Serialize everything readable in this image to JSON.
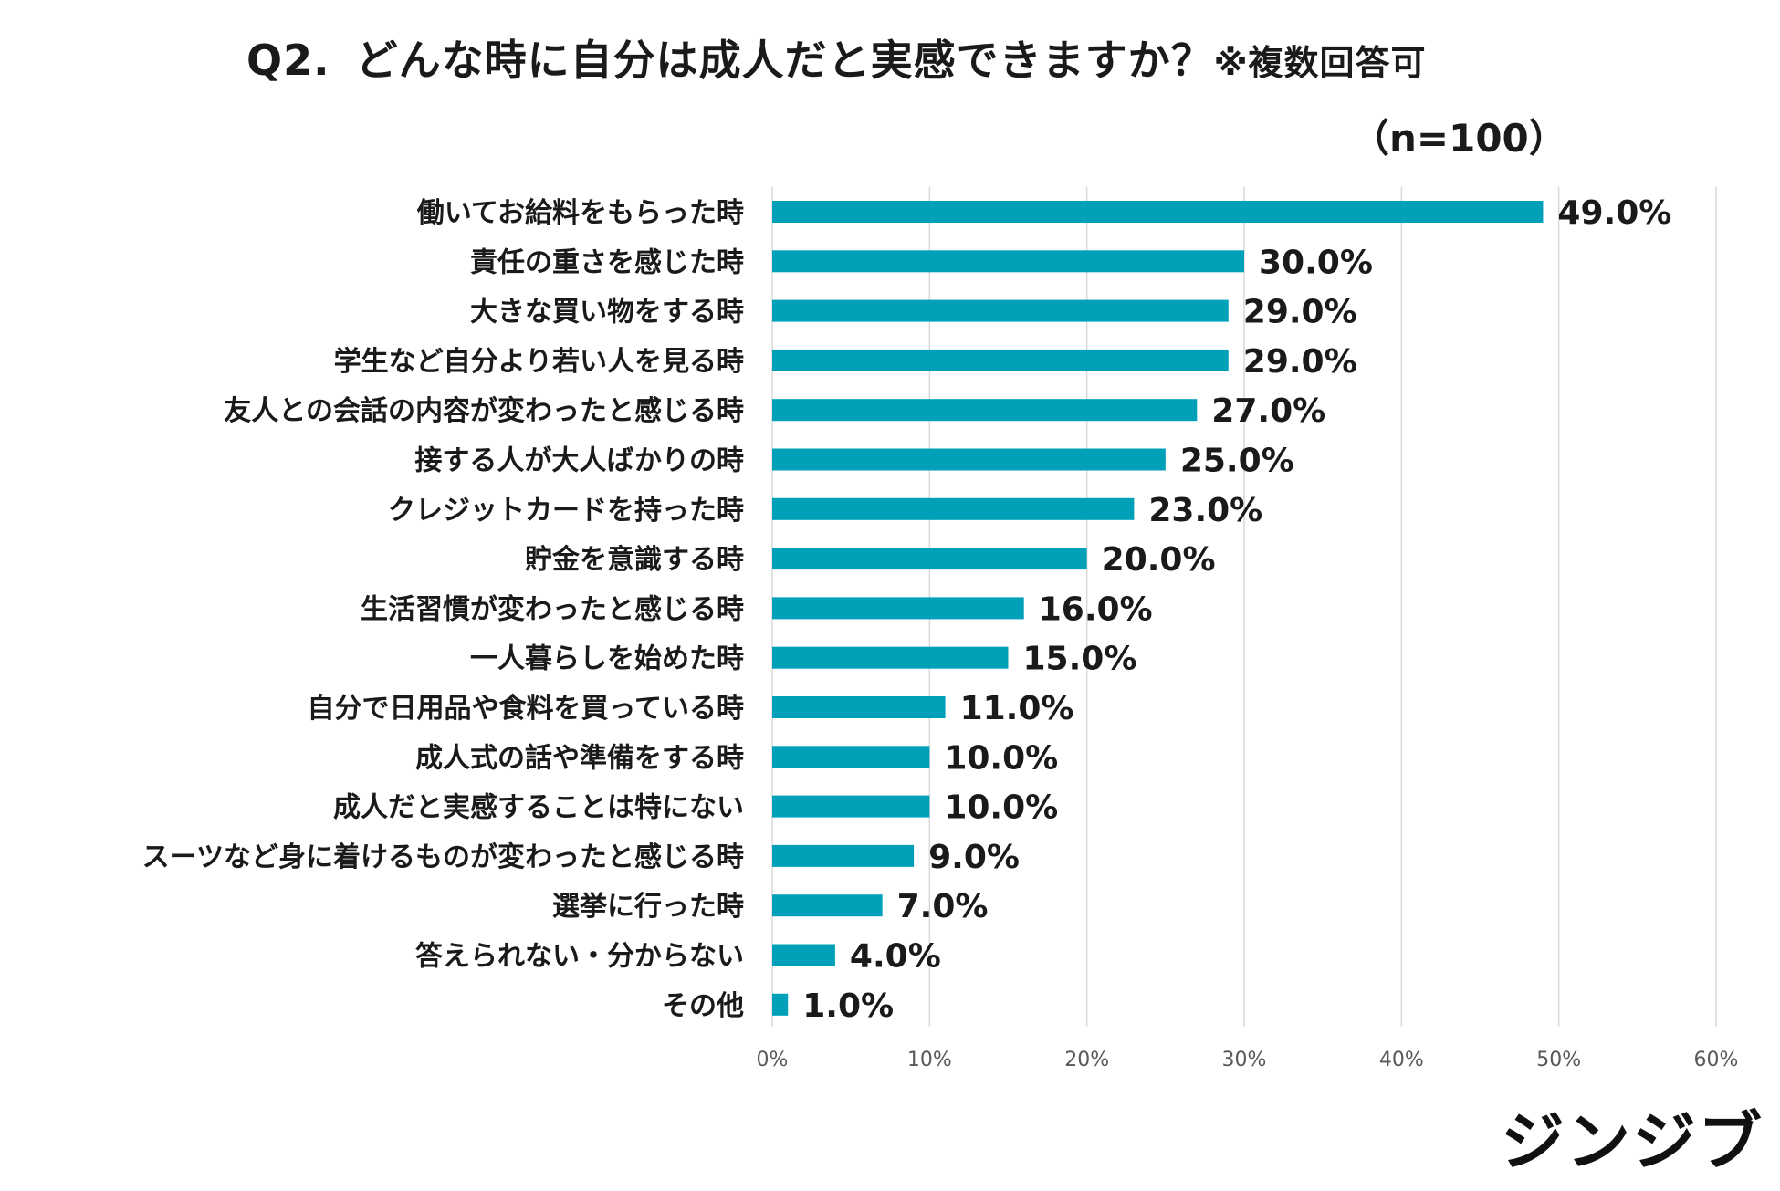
{
  "chart_data": {
    "type": "bar",
    "orientation": "horizontal",
    "title": "Q2.",
    "question": "どんな時に自分は成人だと実感できますか？",
    "note": "※複数回答可",
    "sample_size": "（n=100）",
    "categories": [
      "働いてお給料をもらった時",
      "責任の重さを感じた時",
      "大きな買い物をする時",
      "学生など自分より若い人を見る時",
      "友人との会話の内容が変わったと感じる時",
      "接する人が大人ばかりの時",
      "クレジットカードを持った時",
      "貯金を意識する時",
      "生活習慣が変わったと感じる時",
      "一人暮らしを始めた時",
      "自分で日用品や食料を買っている時",
      "成人式の話や準備をする時",
      "成人だと実感することは特にない",
      "スーツなど身に着けるものが変わったと感じる時",
      "選挙に行った時",
      "答えられない・分からない",
      "その他"
    ],
    "values": [
      49.0,
      30.0,
      29.0,
      29.0,
      27.0,
      25.0,
      23.0,
      20.0,
      16.0,
      15.0,
      11.0,
      10.0,
      10.0,
      9.0,
      7.0,
      4.0,
      1.0
    ],
    "value_labels": [
      "49.0%",
      "30.0%",
      "29.0%",
      "29.0%",
      "27.0%",
      "25.0%",
      "23.0%",
      "20.0%",
      "16.0%",
      "15.0%",
      "11.0%",
      "10.0%",
      "10.0%",
      "9.0%",
      "7.0%",
      "4.0%",
      "1.0%"
    ],
    "x_ticks": [
      0,
      10,
      20,
      30,
      40,
      50,
      60
    ],
    "x_tick_labels": [
      "0%",
      "10%",
      "20%",
      "30%",
      "40%",
      "50%",
      "60%"
    ],
    "xlim": [
      0,
      60
    ],
    "grid": true,
    "bar_color": "#00a0b9",
    "grid_color": "#d9d9d9"
  },
  "brand": {
    "logo_text": "ジンジブ"
  }
}
